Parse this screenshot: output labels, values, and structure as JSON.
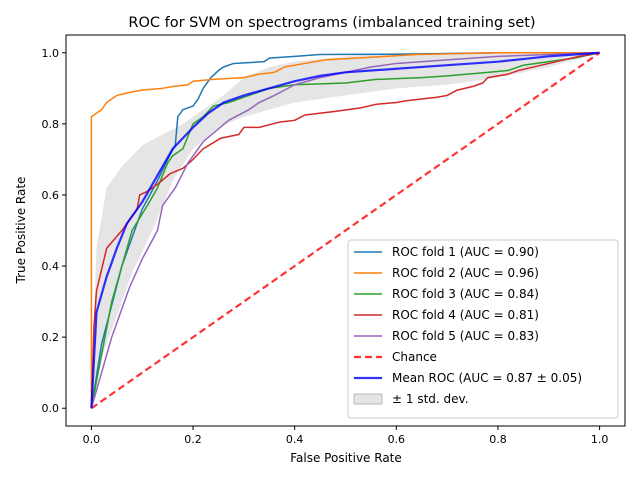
{
  "chart_data": {
    "type": "line",
    "title": "ROC for SVM on spectrograms (imbalanced training set)",
    "xlabel": "False Positive Rate",
    "ylabel": "True Positive Rate",
    "xlim": [
      -0.05,
      1.05
    ],
    "ylim": [
      -0.05,
      1.05
    ],
    "xticks": [
      0.0,
      0.2,
      0.4,
      0.6,
      0.8,
      1.0
    ],
    "yticks": [
      0.0,
      0.2,
      0.4,
      0.6,
      0.8,
      1.0
    ],
    "xtick_labels": [
      "0.0",
      "0.2",
      "0.4",
      "0.6",
      "0.8",
      "1.0"
    ],
    "ytick_labels": [
      "0.0",
      "0.2",
      "0.4",
      "0.6",
      "0.8",
      "1.0"
    ],
    "grid": false,
    "legend_position": "lower-right",
    "series": [
      {
        "name": "ROC fold 1 (AUC = 0.90)",
        "color": "#1f77b4",
        "style": "solid",
        "points": [
          [
            0,
            0
          ],
          [
            0.02,
            0.18
          ],
          [
            0.06,
            0.4
          ],
          [
            0.1,
            0.56
          ],
          [
            0.13,
            0.64
          ],
          [
            0.15,
            0.7
          ],
          [
            0.165,
            0.74
          ],
          [
            0.17,
            0.82
          ],
          [
            0.18,
            0.84
          ],
          [
            0.2,
            0.85
          ],
          [
            0.21,
            0.87
          ],
          [
            0.22,
            0.9
          ],
          [
            0.235,
            0.93
          ],
          [
            0.25,
            0.95
          ],
          [
            0.26,
            0.96
          ],
          [
            0.28,
            0.97
          ],
          [
            0.34,
            0.975
          ],
          [
            0.35,
            0.985
          ],
          [
            0.4,
            0.99
          ],
          [
            0.45,
            0.995
          ],
          [
            0.6,
            0.996
          ],
          [
            0.8,
            1.0
          ],
          [
            1.0,
            1.0
          ]
        ]
      },
      {
        "name": "ROC fold 2 (AUC = 0.96)",
        "color": "#ff7f0e",
        "style": "solid",
        "points": [
          [
            0,
            0
          ],
          [
            0.0,
            0.82
          ],
          [
            0.01,
            0.83
          ],
          [
            0.02,
            0.84
          ],
          [
            0.03,
            0.86
          ],
          [
            0.04,
            0.87
          ],
          [
            0.05,
            0.88
          ],
          [
            0.08,
            0.89
          ],
          [
            0.1,
            0.895
          ],
          [
            0.14,
            0.9
          ],
          [
            0.16,
            0.905
          ],
          [
            0.19,
            0.91
          ],
          [
            0.2,
            0.92
          ],
          [
            0.24,
            0.925
          ],
          [
            0.3,
            0.93
          ],
          [
            0.33,
            0.94
          ],
          [
            0.36,
            0.945
          ],
          [
            0.38,
            0.96
          ],
          [
            0.42,
            0.97
          ],
          [
            0.46,
            0.98
          ],
          [
            0.52,
            0.985
          ],
          [
            0.58,
            0.99
          ],
          [
            0.64,
            0.995
          ],
          [
            0.8,
            1.0
          ],
          [
            1.0,
            1.0
          ]
        ]
      },
      {
        "name": "ROC fold 3 (AUC = 0.84)",
        "color": "#2ca02c",
        "style": "solid",
        "points": [
          [
            0,
            0
          ],
          [
            0.04,
            0.3
          ],
          [
            0.08,
            0.5
          ],
          [
            0.11,
            0.57
          ],
          [
            0.13,
            0.62
          ],
          [
            0.15,
            0.69
          ],
          [
            0.16,
            0.71
          ],
          [
            0.18,
            0.73
          ],
          [
            0.2,
            0.8
          ],
          [
            0.22,
            0.82
          ],
          [
            0.24,
            0.85
          ],
          [
            0.27,
            0.86
          ],
          [
            0.31,
            0.88
          ],
          [
            0.35,
            0.9
          ],
          [
            0.4,
            0.91
          ],
          [
            0.5,
            0.915
          ],
          [
            0.56,
            0.925
          ],
          [
            0.65,
            0.93
          ],
          [
            0.7,
            0.935
          ],
          [
            0.78,
            0.945
          ],
          [
            0.82,
            0.95
          ],
          [
            0.85,
            0.965
          ],
          [
            0.9,
            0.975
          ],
          [
            0.95,
            0.985
          ],
          [
            1.0,
            1.0
          ]
        ]
      },
      {
        "name": "ROC fold 4 (AUC = 0.81)",
        "color": "#d62728",
        "style": "solid",
        "points": [
          [
            0,
            0
          ],
          [
            0.005,
            0.23
          ],
          [
            0.01,
            0.33
          ],
          [
            0.03,
            0.45
          ],
          [
            0.06,
            0.5
          ],
          [
            0.09,
            0.56
          ],
          [
            0.095,
            0.6
          ],
          [
            0.11,
            0.61
          ],
          [
            0.13,
            0.63
          ],
          [
            0.155,
            0.66
          ],
          [
            0.18,
            0.675
          ],
          [
            0.2,
            0.7
          ],
          [
            0.22,
            0.73
          ],
          [
            0.255,
            0.76
          ],
          [
            0.29,
            0.77
          ],
          [
            0.3,
            0.79
          ],
          [
            0.33,
            0.79
          ],
          [
            0.37,
            0.805
          ],
          [
            0.4,
            0.81
          ],
          [
            0.42,
            0.825
          ],
          [
            0.48,
            0.835
          ],
          [
            0.53,
            0.845
          ],
          [
            0.56,
            0.855
          ],
          [
            0.6,
            0.86
          ],
          [
            0.62,
            0.865
          ],
          [
            0.65,
            0.87
          ],
          [
            0.68,
            0.875
          ],
          [
            0.7,
            0.88
          ],
          [
            0.72,
            0.895
          ],
          [
            0.75,
            0.905
          ],
          [
            0.77,
            0.915
          ],
          [
            0.78,
            0.93
          ],
          [
            0.82,
            0.94
          ],
          [
            0.84,
            0.95
          ],
          [
            0.9,
            0.97
          ],
          [
            0.96,
            0.99
          ],
          [
            1.0,
            1.0
          ]
        ]
      },
      {
        "name": "ROC fold 5 (AUC = 0.83)",
        "color": "#9467bd",
        "style": "solid",
        "points": [
          [
            0,
            0
          ],
          [
            0.04,
            0.2
          ],
          [
            0.075,
            0.34
          ],
          [
            0.1,
            0.42
          ],
          [
            0.13,
            0.5
          ],
          [
            0.14,
            0.57
          ],
          [
            0.165,
            0.62
          ],
          [
            0.19,
            0.69
          ],
          [
            0.22,
            0.75
          ],
          [
            0.27,
            0.81
          ],
          [
            0.31,
            0.84
          ],
          [
            0.33,
            0.86
          ],
          [
            0.36,
            0.88
          ],
          [
            0.4,
            0.91
          ],
          [
            0.45,
            0.93
          ],
          [
            0.5,
            0.945
          ],
          [
            0.55,
            0.96
          ],
          [
            0.6,
            0.97
          ],
          [
            0.7,
            0.98
          ],
          [
            0.8,
            0.99
          ],
          [
            0.9,
            0.995
          ],
          [
            1.0,
            1.0
          ]
        ]
      },
      {
        "name": "Chance",
        "color": "#ff0000",
        "style": "dashed",
        "points": [
          [
            0,
            0
          ],
          [
            1,
            1
          ]
        ]
      },
      {
        "name": "Mean ROC (AUC = 0.87 ± 0.05)",
        "color": "#0000ff",
        "style": "solid",
        "points": [
          [
            0,
            0
          ],
          [
            0.01,
            0.27
          ],
          [
            0.03,
            0.37
          ],
          [
            0.05,
            0.45
          ],
          [
            0.07,
            0.52
          ],
          [
            0.1,
            0.58
          ],
          [
            0.12,
            0.63
          ],
          [
            0.14,
            0.68
          ],
          [
            0.16,
            0.73
          ],
          [
            0.18,
            0.76
          ],
          [
            0.2,
            0.79
          ],
          [
            0.23,
            0.83
          ],
          [
            0.26,
            0.86
          ],
          [
            0.3,
            0.88
          ],
          [
            0.35,
            0.9
          ],
          [
            0.4,
            0.92
          ],
          [
            0.45,
            0.935
          ],
          [
            0.5,
            0.945
          ],
          [
            0.6,
            0.955
          ],
          [
            0.7,
            0.965
          ],
          [
            0.8,
            0.975
          ],
          [
            0.9,
            0.99
          ],
          [
            1.0,
            1.0
          ]
        ]
      }
    ],
    "band": {
      "name": "± 1 std. dev.",
      "color": "#bfbfbf",
      "upper": [
        [
          0,
          0.02
        ],
        [
          0.01,
          0.45
        ],
        [
          0.03,
          0.62
        ],
        [
          0.06,
          0.68
        ],
        [
          0.1,
          0.74
        ],
        [
          0.14,
          0.77
        ],
        [
          0.18,
          0.8
        ],
        [
          0.22,
          0.84
        ],
        [
          0.26,
          0.88
        ],
        [
          0.3,
          0.93
        ],
        [
          0.35,
          0.96
        ],
        [
          0.4,
          0.975
        ],
        [
          0.5,
          0.99
        ],
        [
          0.6,
          1.0
        ],
        [
          1.0,
          1.0
        ]
      ],
      "lower": [
        [
          0,
          0
        ],
        [
          0.01,
          0.1
        ],
        [
          0.04,
          0.22
        ],
        [
          0.08,
          0.38
        ],
        [
          0.12,
          0.5
        ],
        [
          0.16,
          0.64
        ],
        [
          0.2,
          0.73
        ],
        [
          0.25,
          0.79
        ],
        [
          0.3,
          0.82
        ],
        [
          0.35,
          0.84
        ],
        [
          0.4,
          0.86
        ],
        [
          0.5,
          0.88
        ],
        [
          0.6,
          0.9
        ],
        [
          0.7,
          0.91
        ],
        [
          0.8,
          0.93
        ],
        [
          0.9,
          0.96
        ],
        [
          1.0,
          1.0
        ]
      ]
    }
  }
}
